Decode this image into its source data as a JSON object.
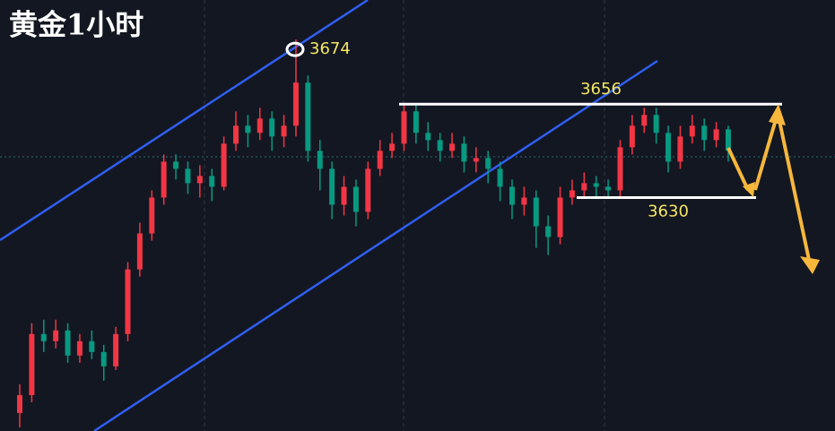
{
  "chart_data": {
    "type": "candlestick",
    "title": "黄金1小时",
    "ylim": [
      3565,
      3685
    ],
    "up_color": "#f23645",
    "down_color": "#089981",
    "levels": [
      3674,
      3656,
      3630
    ],
    "ohlc": [
      [
        3570,
        3578,
        3566,
        3575
      ],
      [
        3575,
        3595,
        3573,
        3592
      ],
      [
        3592,
        3596,
        3587,
        3590
      ],
      [
        3590,
        3596,
        3588,
        3593
      ],
      [
        3593,
        3595,
        3584,
        3586
      ],
      [
        3586,
        3592,
        3584,
        3590
      ],
      [
        3590,
        3593,
        3585,
        3587
      ],
      [
        3587,
        3589,
        3579,
        3583
      ],
      [
        3583,
        3594,
        3582,
        3592
      ],
      [
        3592,
        3612,
        3590,
        3610
      ],
      [
        3610,
        3623,
        3608,
        3620
      ],
      [
        3620,
        3632,
        3618,
        3630
      ],
      [
        3630,
        3642,
        3628,
        3640
      ],
      [
        3640,
        3642,
        3635,
        3638
      ],
      [
        3638,
        3640,
        3631,
        3634
      ],
      [
        3634,
        3639,
        3630,
        3636
      ],
      [
        3636,
        3638,
        3629,
        3633
      ],
      [
        3633,
        3647,
        3632,
        3645
      ],
      [
        3645,
        3654,
        3643,
        3650
      ],
      [
        3650,
        3653,
        3644,
        3648
      ],
      [
        3648,
        3655,
        3646,
        3652
      ],
      [
        3652,
        3654,
        3643,
        3647
      ],
      [
        3647,
        3653,
        3644,
        3650
      ],
      [
        3650,
        3674,
        3647,
        3662
      ],
      [
        3662,
        3664,
        3640,
        3643
      ],
      [
        3643,
        3646,
        3632,
        3638
      ],
      [
        3638,
        3640,
        3624,
        3628
      ],
      [
        3628,
        3636,
        3625,
        3633
      ],
      [
        3633,
        3635,
        3622,
        3626
      ],
      [
        3626,
        3640,
        3624,
        3638
      ],
      [
        3638,
        3646,
        3636,
        3643
      ],
      [
        3643,
        3648,
        3641,
        3645
      ],
      [
        3645,
        3656,
        3643,
        3654
      ],
      [
        3654,
        3656,
        3645,
        3648
      ],
      [
        3648,
        3651,
        3643,
        3646
      ],
      [
        3646,
        3648,
        3640,
        3643
      ],
      [
        3643,
        3648,
        3641,
        3645
      ],
      [
        3645,
        3647,
        3637,
        3640
      ],
      [
        3640,
        3644,
        3637,
        3641
      ],
      [
        3641,
        3643,
        3634,
        3638
      ],
      [
        3638,
        3640,
        3629,
        3633
      ],
      [
        3633,
        3635,
        3624,
        3628
      ],
      [
        3628,
        3633,
        3625,
        3630
      ],
      [
        3630,
        3632,
        3616,
        3622
      ],
      [
        3622,
        3625,
        3614,
        3619
      ],
      [
        3619,
        3633,
        3617,
        3630
      ],
      [
        3630,
        3635,
        3628,
        3632
      ],
      [
        3632,
        3637,
        3630,
        3634
      ],
      [
        3634,
        3636,
        3630,
        3633
      ],
      [
        3633,
        3635,
        3630,
        3632
      ],
      [
        3632,
        3646,
        3630,
        3644
      ],
      [
        3644,
        3653,
        3642,
        3650
      ],
      [
        3650,
        3655,
        3648,
        3653
      ],
      [
        3653,
        3655,
        3645,
        3648
      ],
      [
        3648,
        3650,
        3637,
        3640
      ],
      [
        3640,
        3650,
        3638,
        3647
      ],
      [
        3647,
        3653,
        3645,
        3650
      ],
      [
        3650,
        3652,
        3643,
        3646
      ],
      [
        3646,
        3651,
        3644,
        3649
      ],
      [
        3649,
        3650,
        3640,
        3643
      ]
    ]
  }
}
